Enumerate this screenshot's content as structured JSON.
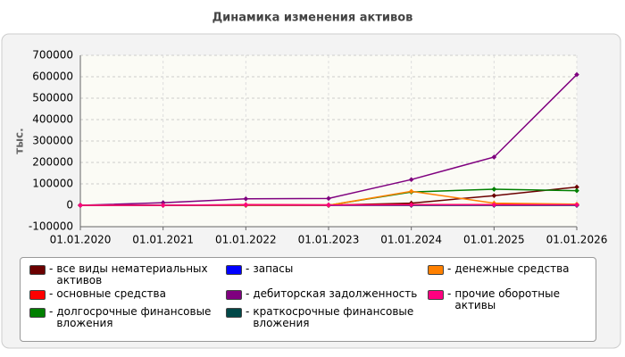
{
  "chart_data": {
    "type": "line",
    "title": "Динамика изменения активов",
    "ylabel": "тыс.",
    "categories": [
      "01.01.2020",
      "01.01.2021",
      "01.01.2022",
      "01.01.2023",
      "01.01.2024",
      "01.01.2025",
      "01.01.2026"
    ],
    "ylim": [
      -100000,
      700000
    ],
    "yticks": [
      -100000,
      0,
      100000,
      200000,
      300000,
      400000,
      500000,
      600000,
      700000
    ],
    "grid": true,
    "series": [
      {
        "name": "все виды нематериальных активов",
        "color": "#6b0000",
        "values": [
          0,
          0,
          0,
          0,
          10000,
          45000,
          85000
        ]
      },
      {
        "name": "основные средства",
        "color": "#ff0000",
        "values": [
          0,
          0,
          3000,
          2000,
          3000,
          3000,
          3000
        ]
      },
      {
        "name": "долгосрочные финансовые вложения",
        "color": "#007f00",
        "values": [
          0,
          0,
          0,
          0,
          62000,
          75000,
          68000
        ]
      },
      {
        "name": "запасы",
        "color": "#0000ff",
        "values": [
          0,
          0,
          0,
          0,
          0,
          0,
          0
        ]
      },
      {
        "name": "дебиторская задолженность",
        "color": "#7f007f",
        "values": [
          0,
          12000,
          30000,
          32000,
          120000,
          225000,
          610000
        ]
      },
      {
        "name": "краткосрочные финансовые вложения",
        "color": "#004848",
        "values": [
          0,
          0,
          0,
          0,
          0,
          0,
          0
        ]
      },
      {
        "name": "денежные средства",
        "color": "#ff8000",
        "values": [
          0,
          0,
          0,
          0,
          65000,
          10000,
          5000
        ]
      },
      {
        "name": "прочие оборотные активы",
        "color": "#ff0080",
        "values": [
          0,
          0,
          2000,
          1000,
          2000,
          2000,
          2000
        ]
      }
    ]
  }
}
